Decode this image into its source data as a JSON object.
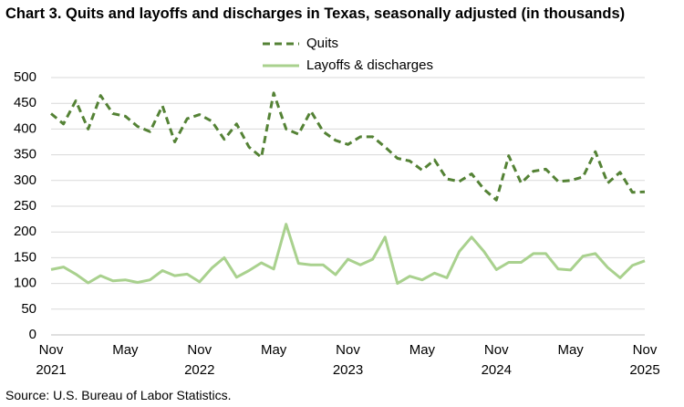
{
  "chart_data": {
    "type": "line",
    "title": "Chart 3. Quits and layoffs and discharges in Texas, seasonally adjusted (in thousands)",
    "source": "Source: U.S. Bureau of Labor Statistics.",
    "categories": [
      "Nov 2021",
      null,
      null,
      null,
      null,
      null,
      "May",
      null,
      null,
      null,
      null,
      null,
      "Nov 2022",
      null,
      null,
      null,
      null,
      null,
      "May",
      null,
      null,
      null,
      null,
      null,
      "Nov 2023",
      null,
      null,
      null,
      null,
      null,
      "May",
      null,
      null,
      null,
      null,
      null,
      "Nov 2024",
      null,
      null,
      null,
      null,
      null,
      "May",
      null,
      null,
      null,
      null,
      null,
      "Nov 2025"
    ],
    "series": [
      {
        "name": "Quits",
        "color": "#548235",
        "line_style": "dashed",
        "values": [
          430,
          410,
          455,
          400,
          465,
          430,
          425,
          405,
          395,
          445,
          375,
          420,
          428,
          415,
          380,
          410,
          365,
          345,
          470,
          400,
          390,
          435,
          395,
          378,
          370,
          385,
          385,
          365,
          343,
          338,
          320,
          340,
          303,
          298,
          313,
          283,
          262,
          348,
          295,
          318,
          322,
          298,
          300,
          307,
          356,
          295,
          316,
          277,
          278
        ]
      },
      {
        "name": "Layoffs & discharges",
        "color": "#a9d18e",
        "line_style": "solid",
        "values": [
          127,
          132,
          118,
          101,
          115,
          105,
          107,
          102,
          107,
          125,
          115,
          118,
          103,
          130,
          150,
          112,
          125,
          140,
          128,
          215,
          139,
          136,
          136,
          117,
          147,
          136,
          147,
          190,
          100,
          114,
          107,
          120,
          111,
          162,
          190,
          162,
          127,
          141,
          141,
          158,
          158,
          128,
          126,
          153,
          158,
          131,
          111,
          135,
          144
        ]
      }
    ],
    "ylim": [
      0,
      500
    ],
    "yticks": [
      0,
      50,
      100,
      150,
      200,
      250,
      300,
      350,
      400,
      450,
      500
    ],
    "grid": true,
    "legend": "top"
  }
}
